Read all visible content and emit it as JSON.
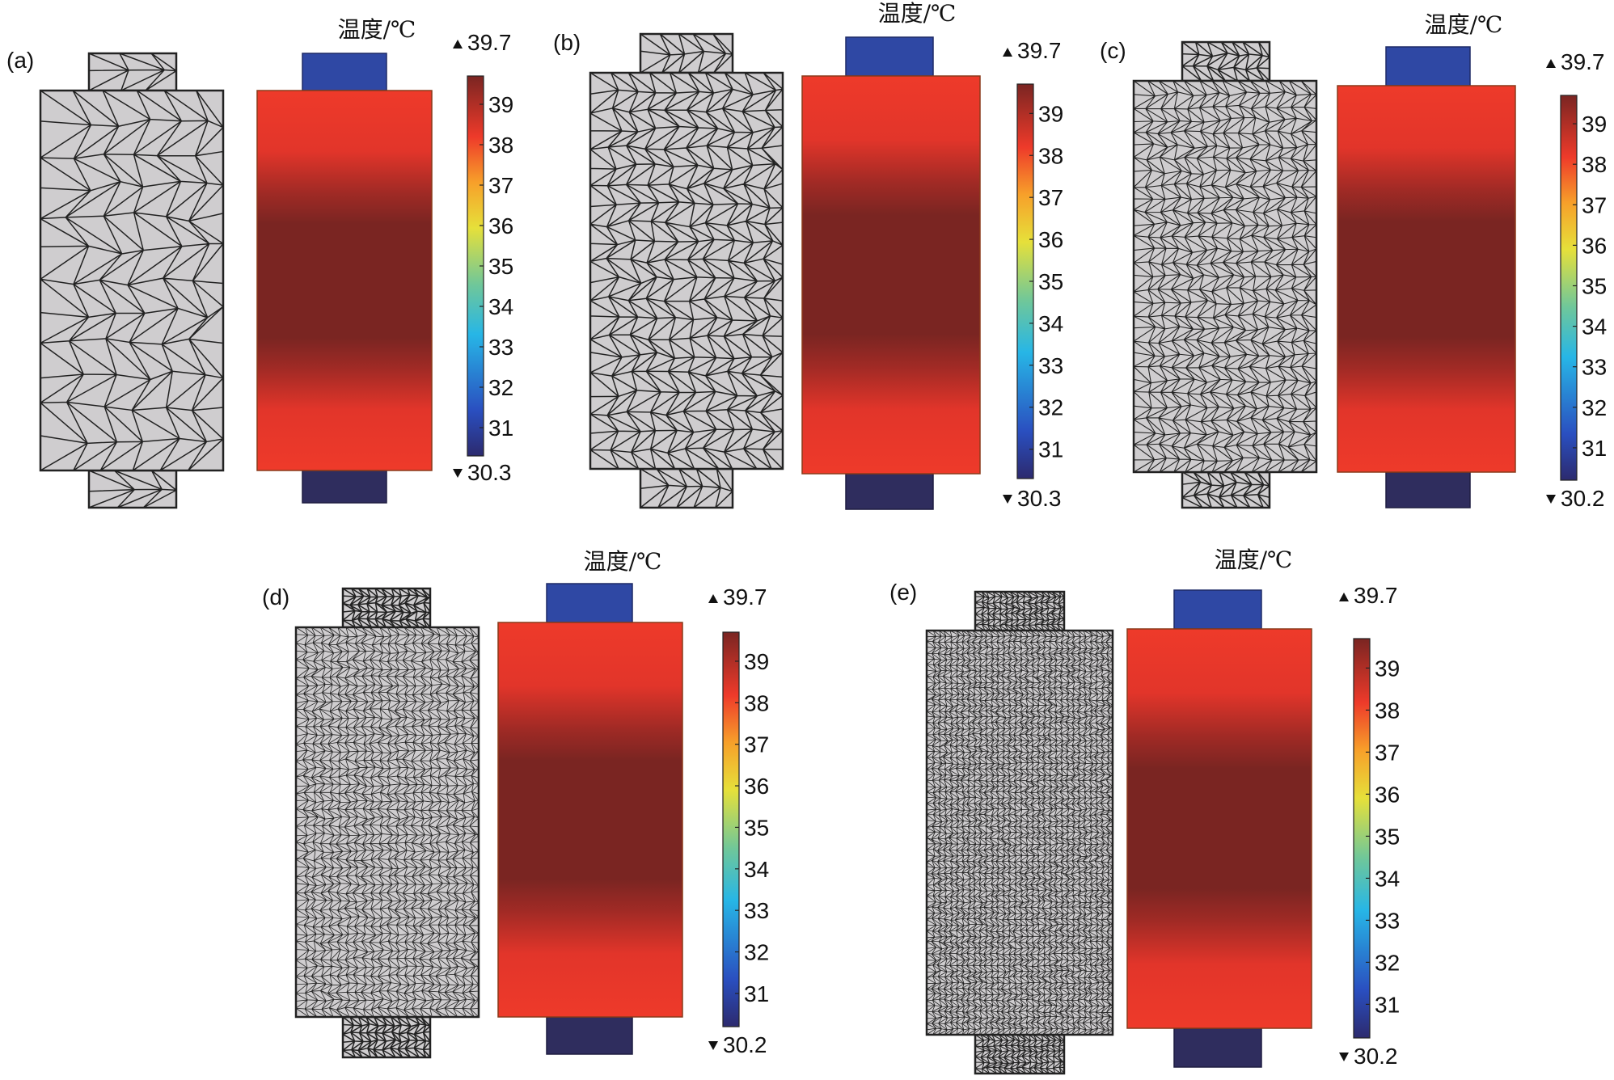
{
  "panels": [
    {
      "id": "a",
      "label": "(a)",
      "title": "温度/℃",
      "max_label": "39.7",
      "min_label": "30.3",
      "ticks": [
        "39",
        "38",
        "37",
        "36",
        "35",
        "34",
        "33",
        "32",
        "31"
      ],
      "mesh": "coarse"
    },
    {
      "id": "b",
      "label": "(b)",
      "title": "温度/℃",
      "max_label": "39.7",
      "min_label": "30.3",
      "ticks": [
        "39",
        "38",
        "37",
        "36",
        "35",
        "34",
        "33",
        "32",
        "31"
      ],
      "mesh": "normal"
    },
    {
      "id": "c",
      "label": "(c)",
      "title": "温度/℃",
      "max_label": "39.7",
      "min_label": "30.2",
      "ticks": [
        "39",
        "38",
        "37",
        "36",
        "35",
        "34",
        "33",
        "32",
        "31"
      ],
      "mesh": "fine"
    },
    {
      "id": "d",
      "label": "(d)",
      "title": "温度/℃",
      "max_label": "39.7",
      "min_label": "30.2",
      "ticks": [
        "39",
        "38",
        "37",
        "36",
        "35",
        "34",
        "33",
        "32",
        "31"
      ],
      "mesh": "finer"
    },
    {
      "id": "e",
      "label": "(e)",
      "title": "温度/℃",
      "max_label": "39.7",
      "min_label": "30.2",
      "ticks": [
        "39",
        "38",
        "37",
        "36",
        "35",
        "34",
        "33",
        "32",
        "31"
      ],
      "mesh": "extra-fine"
    }
  ],
  "colors": {
    "mesh_fill": "#cfcdcf",
    "mesh_line": "#222222",
    "positive_tab": "#2f48a4",
    "negative_tab": "#2f2d5e",
    "colormap": [
      "#2c2a6e",
      "#2a4fc0",
      "#27b6e6",
      "#6fc79a",
      "#e6e03a",
      "#f7a02a",
      "#ee3a2a",
      "#c7302a",
      "#7a2522"
    ]
  }
}
